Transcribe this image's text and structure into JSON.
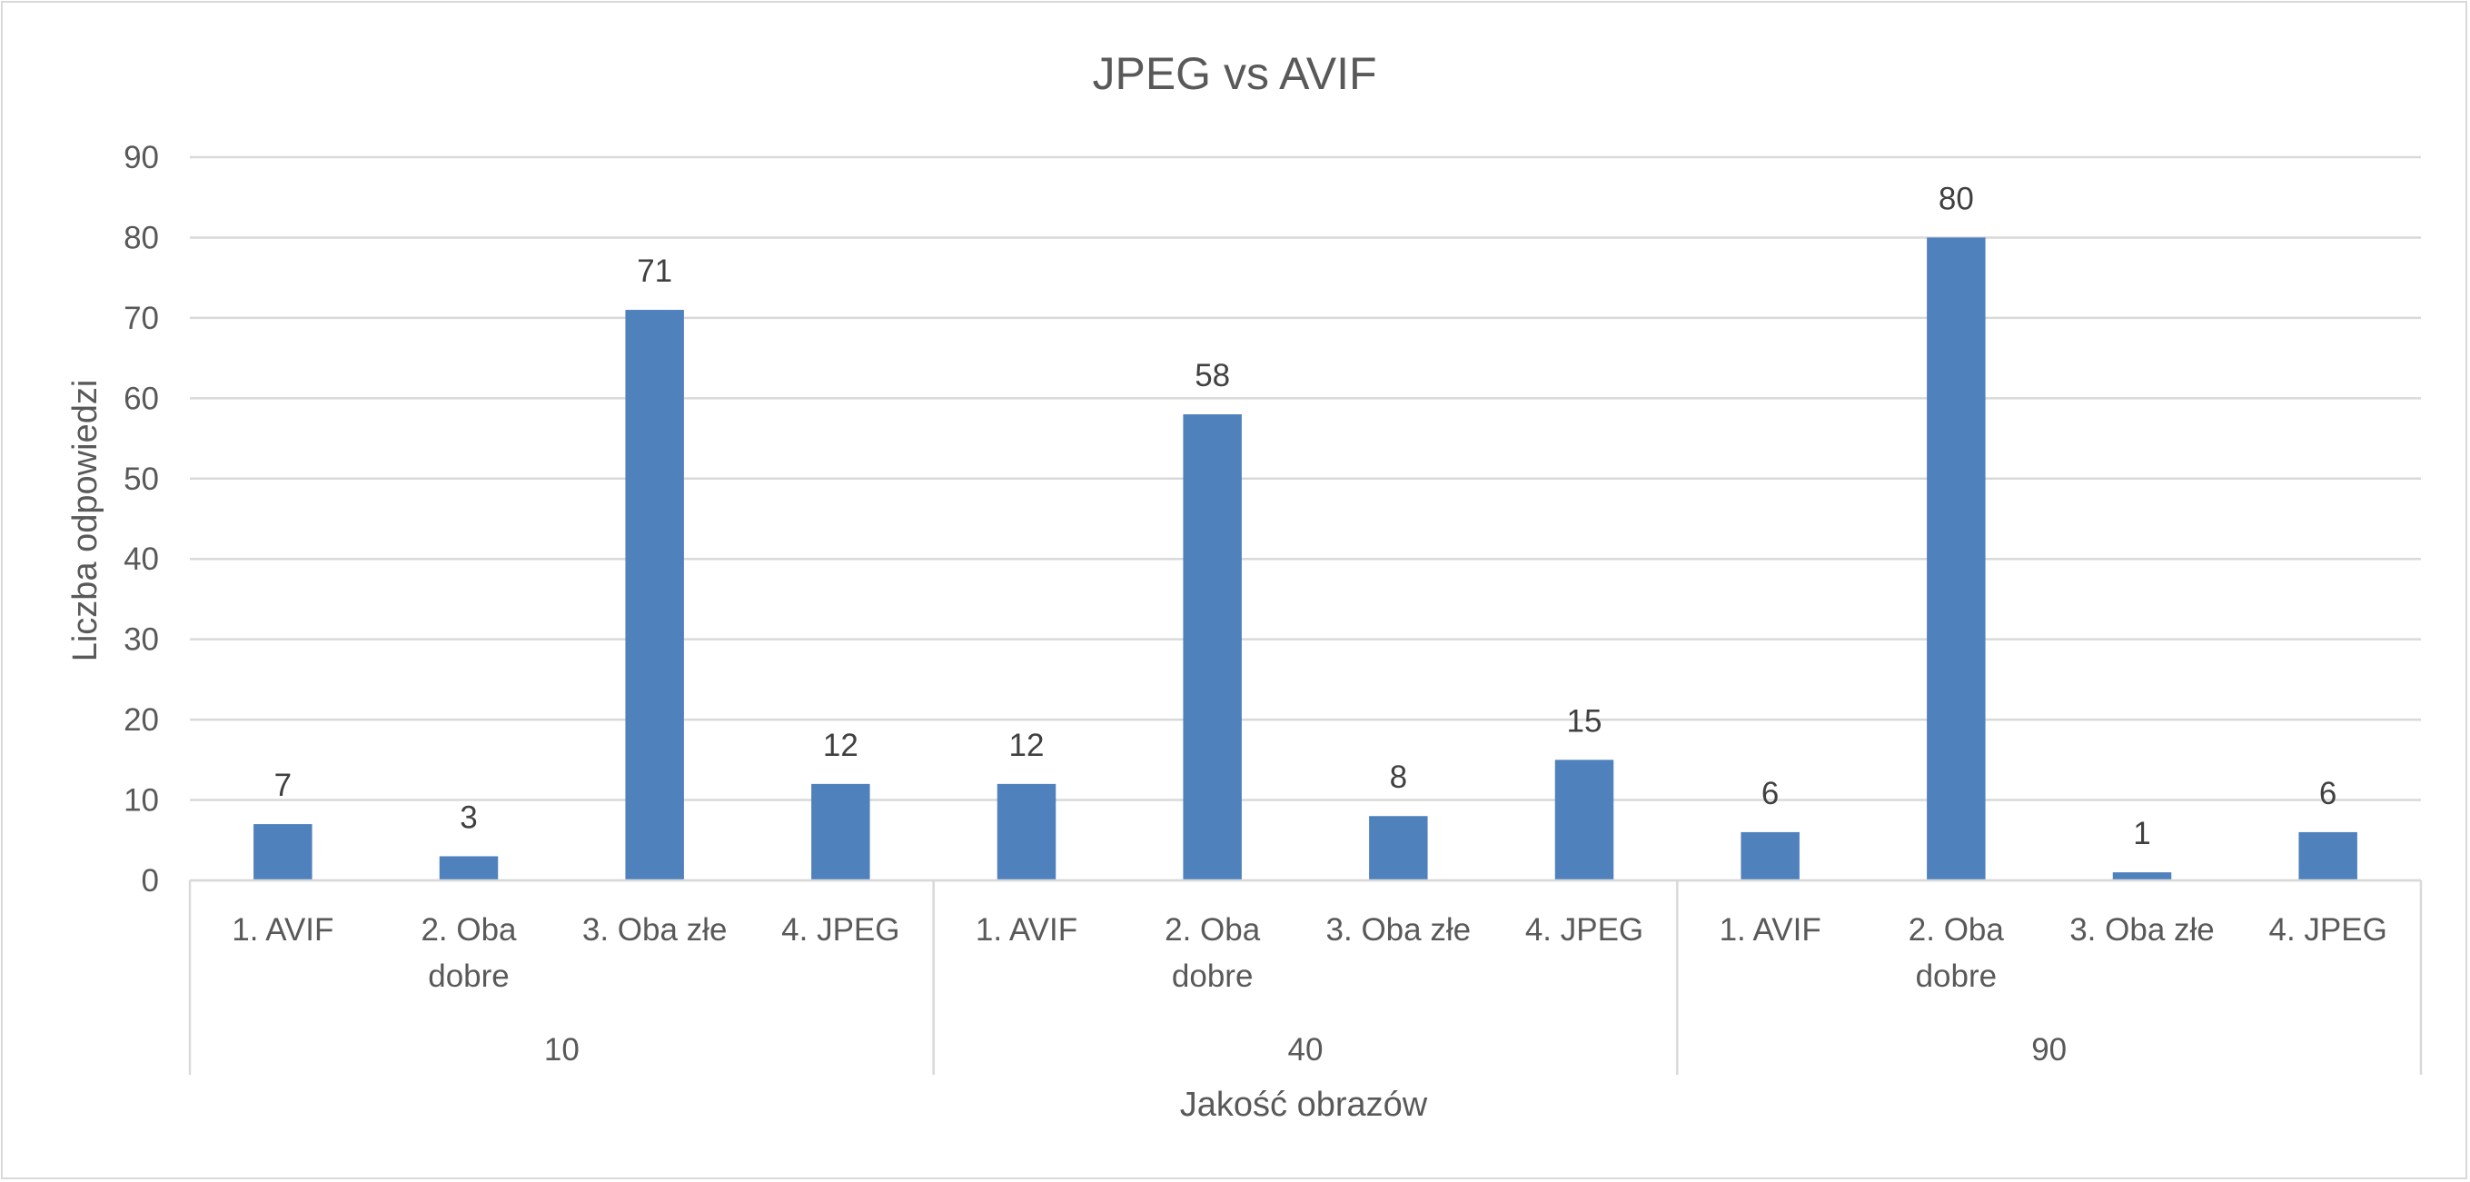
{
  "chart_data": {
    "type": "bar",
    "title": "JPEG vs AVIF",
    "xlabel": "Jakość obrazów",
    "ylabel": "Liczba odpowiedzi",
    "ylim": [
      0,
      90
    ],
    "ytick_step": 10,
    "yticks": [
      "0",
      "10",
      "20",
      "30",
      "40",
      "50",
      "60",
      "70",
      "80",
      "90"
    ],
    "grid": true,
    "legend": "none",
    "bar_color": "#4f81bd",
    "groups": [
      {
        "label": "10",
        "categories": [
          [
            "1. AVIF"
          ],
          [
            "2. Oba",
            "dobre"
          ],
          [
            "3. Oba złe"
          ],
          [
            "4. JPEG"
          ]
        ],
        "values": [
          7,
          3,
          71,
          12
        ],
        "value_labels": [
          "7",
          "3",
          "71",
          "12"
        ]
      },
      {
        "label": "40",
        "categories": [
          [
            "1. AVIF"
          ],
          [
            "2. Oba",
            "dobre"
          ],
          [
            "3. Oba złe"
          ],
          [
            "4. JPEG"
          ]
        ],
        "values": [
          12,
          58,
          8,
          15
        ],
        "value_labels": [
          "12",
          "58",
          "8",
          "15"
        ]
      },
      {
        "label": "90",
        "categories": [
          [
            "1. AVIF"
          ],
          [
            "2. Oba",
            "dobre"
          ],
          [
            "3. Oba złe"
          ],
          [
            "4. JPEG"
          ]
        ],
        "values": [
          6,
          80,
          1,
          6
        ],
        "value_labels": [
          "6",
          "80",
          "1",
          "6"
        ]
      }
    ]
  }
}
